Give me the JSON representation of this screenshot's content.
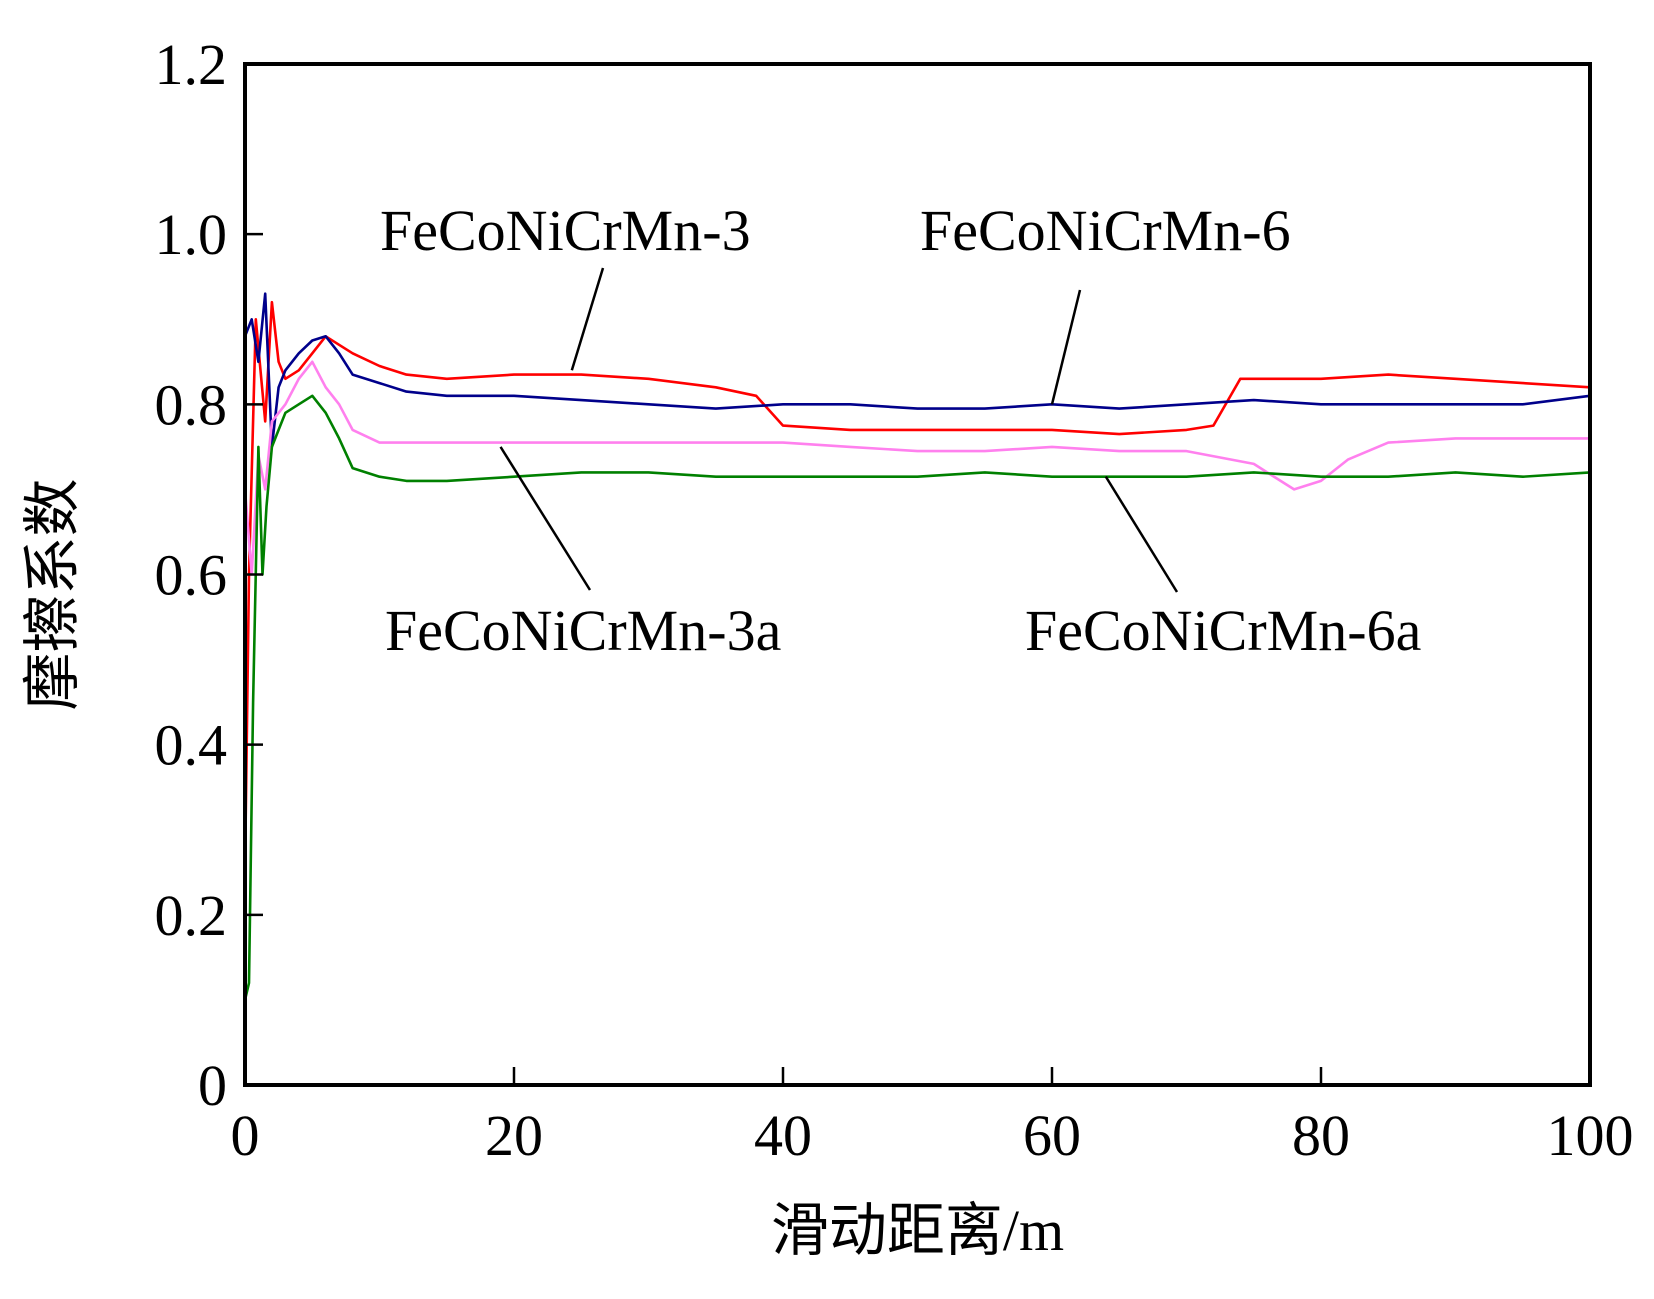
{
  "chart_data": {
    "type": "line",
    "xlabel": "滑动距离/m",
    "ylabel": "摩擦系数",
    "xlim": [
      0,
      100
    ],
    "ylim": [
      0,
      1.2
    ],
    "xticks": [
      0,
      20,
      40,
      60,
      80,
      100
    ],
    "xtick_labels": [
      "0",
      "20",
      "40",
      "60",
      "80",
      "100"
    ],
    "yticks": [
      0,
      0.2,
      0.4,
      0.6,
      0.8,
      1.0,
      1.2
    ],
    "ytick_labels": [
      "0",
      "0.2",
      "0.4",
      "0.6",
      "0.8",
      "1.0",
      "1.2"
    ],
    "grid": false,
    "legend": "inline labels with leader lines",
    "series": [
      {
        "name": "FeCoNiCrMn-3",
        "color": "#ff0000",
        "x": [
          0,
          0.3,
          0.8,
          1.5,
          2.0,
          2.5,
          3,
          4,
          5,
          6,
          7,
          8,
          10,
          12,
          15,
          20,
          25,
          30,
          35,
          38,
          40,
          45,
          50,
          55,
          60,
          65,
          70,
          72,
          74,
          76,
          80,
          85,
          90,
          95,
          100
        ],
        "y": [
          0.25,
          0.6,
          0.9,
          0.78,
          0.92,
          0.85,
          0.83,
          0.84,
          0.86,
          0.88,
          0.87,
          0.86,
          0.845,
          0.835,
          0.83,
          0.835,
          0.835,
          0.83,
          0.82,
          0.81,
          0.775,
          0.77,
          0.77,
          0.77,
          0.77,
          0.765,
          0.77,
          0.775,
          0.83,
          0.83,
          0.83,
          0.835,
          0.83,
          0.825,
          0.82
        ]
      },
      {
        "name": "FeCoNiCrMn-6",
        "color": "#00008b",
        "x": [
          0,
          0.5,
          1,
          1.5,
          2,
          2.5,
          3,
          4,
          5,
          6,
          7,
          8,
          10,
          12,
          15,
          20,
          25,
          30,
          35,
          40,
          45,
          50,
          55,
          60,
          65,
          70,
          75,
          80,
          85,
          90,
          95,
          100
        ],
        "y": [
          0.88,
          0.9,
          0.85,
          0.93,
          0.75,
          0.82,
          0.84,
          0.86,
          0.875,
          0.88,
          0.86,
          0.835,
          0.825,
          0.815,
          0.81,
          0.81,
          0.805,
          0.8,
          0.795,
          0.8,
          0.8,
          0.795,
          0.795,
          0.8,
          0.795,
          0.8,
          0.805,
          0.8,
          0.8,
          0.8,
          0.8,
          0.81
        ]
      },
      {
        "name": "FeCoNiCrMn-3a",
        "color": "#ff80ee",
        "x": [
          0,
          0.5,
          1,
          1.5,
          2,
          3,
          4,
          5,
          6,
          7,
          8,
          10,
          12,
          15,
          20,
          25,
          30,
          35,
          40,
          45,
          50,
          55,
          60,
          65,
          70,
          75,
          78,
          80,
          82,
          85,
          90,
          95,
          100
        ],
        "y": [
          0.7,
          0.6,
          0.74,
          0.7,
          0.78,
          0.8,
          0.83,
          0.85,
          0.82,
          0.8,
          0.77,
          0.755,
          0.755,
          0.755,
          0.755,
          0.755,
          0.755,
          0.755,
          0.755,
          0.75,
          0.745,
          0.745,
          0.75,
          0.745,
          0.745,
          0.73,
          0.7,
          0.71,
          0.735,
          0.755,
          0.76,
          0.76,
          0.76
        ]
      },
      {
        "name": "FeCoNiCrMn-6a",
        "color": "#008000",
        "x": [
          0,
          0.3,
          0.6,
          1,
          1.3,
          1.6,
          2,
          2.5,
          3,
          4,
          5,
          6,
          7,
          8,
          10,
          12,
          15,
          20,
          25,
          30,
          35,
          40,
          45,
          50,
          55,
          60,
          65,
          70,
          75,
          80,
          85,
          90,
          95,
          100
        ],
        "y": [
          0.1,
          0.12,
          0.45,
          0.75,
          0.6,
          0.68,
          0.75,
          0.77,
          0.79,
          0.8,
          0.81,
          0.79,
          0.76,
          0.725,
          0.715,
          0.71,
          0.71,
          0.715,
          0.72,
          0.72,
          0.715,
          0.715,
          0.715,
          0.715,
          0.72,
          0.715,
          0.715,
          0.715,
          0.72,
          0.715,
          0.715,
          0.72,
          0.715,
          0.72
        ]
      }
    ]
  }
}
